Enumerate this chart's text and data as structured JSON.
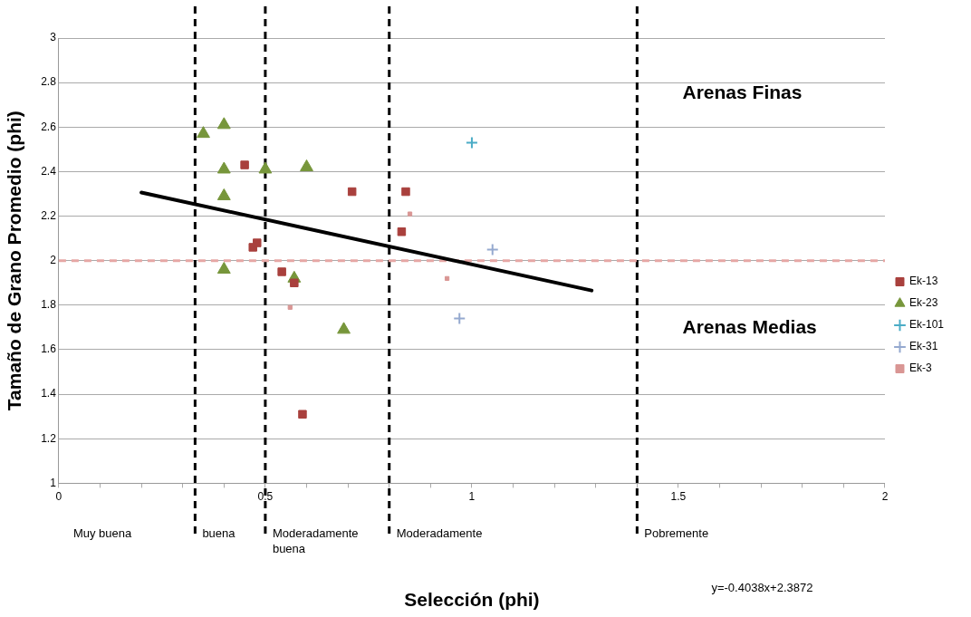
{
  "chart_data": {
    "type": "scatter",
    "xlabel": "Selección (phi)",
    "ylabel": "Tamaño de Grano Promedio (phi)",
    "xlim": [
      0,
      2
    ],
    "xticks": [
      0,
      {
        "value": 0.1,
        "label": null
      },
      {
        "value": 0.2,
        "label": null
      },
      {
        "value": 0.3,
        "label": null
      },
      {
        "value": 0.4,
        "label": null
      },
      0.5,
      {
        "value": 0.6,
        "label": null
      },
      {
        "value": 0.7,
        "label": null
      },
      {
        "value": 0.8,
        "label": null
      },
      {
        "value": 0.9,
        "label": null
      },
      1,
      {
        "value": 1.1,
        "label": null
      },
      {
        "value": 1.2,
        "label": null
      },
      {
        "value": 1.3,
        "label": null
      },
      {
        "value": 1.4,
        "label": null
      },
      1.5,
      {
        "value": 1.6,
        "label": null
      },
      {
        "value": 1.7,
        "label": null
      },
      {
        "value": 1.8,
        "label": null
      },
      {
        "value": 1.9,
        "label": null
      },
      2
    ],
    "ylim": [
      1,
      3
    ],
    "yticks": [
      1,
      1.2,
      1.4,
      1.6,
      1.8,
      2,
      2.2,
      2.4,
      2.6,
      2.8,
      3
    ],
    "grid": "y",
    "legend": "right",
    "series": [
      {
        "name": "Ek-13",
        "color": "#a9403d",
        "marker": "square",
        "x": [
          0.45,
          0.47,
          0.48,
          0.54,
          0.57,
          0.59,
          0.71,
          0.84,
          0.83
        ],
        "values": [
          2.43,
          2.06,
          2.08,
          1.95,
          1.9,
          1.31,
          2.31,
          2.31,
          2.13
        ]
      },
      {
        "name": "Ek-23",
        "color": "#77963b",
        "marker": "triangle",
        "x": [
          0.35,
          0.4,
          0.4,
          0.4,
          0.4,
          0.5,
          0.6,
          0.57,
          0.69
        ],
        "values": [
          2.57,
          2.61,
          2.41,
          2.29,
          1.96,
          2.41,
          2.42,
          1.92,
          1.69
        ]
      },
      {
        "name": "Ek-101",
        "color": "#4bacc6",
        "marker": "cross",
        "x": [
          1.0
        ],
        "values": [
          2.53
        ]
      },
      {
        "name": "Ek-31",
        "color": "#95a9cf",
        "marker": "cross",
        "x": [
          1.05,
          0.97
        ],
        "values": [
          2.05,
          1.74
        ]
      },
      {
        "name": "Ek-3",
        "color": "#d99694",
        "marker": "square",
        "x": [
          0.85,
          0.56,
          0.94
        ],
        "values": [
          2.21,
          1.79,
          1.92
        ]
      },
      {
        "type": "line",
        "color": "#000000",
        "marker": "none",
        "line_style": "solid",
        "x": [
          0.2,
          1.29
        ],
        "values": [
          2.306,
          1.866
        ]
      }
    ],
    "ref_lines": [
      {
        "axis": "x",
        "value": 0.33,
        "color": "#000000",
        "line_style": "dashed"
      },
      {
        "axis": "x",
        "value": 0.5,
        "color": "#000000",
        "line_style": "dashed"
      },
      {
        "axis": "x",
        "value": 0.8,
        "color": "#000000",
        "line_style": "dashed"
      },
      {
        "axis": "x",
        "value": 1.4,
        "color": "#000000",
        "line_style": "dashed"
      },
      {
        "axis": "y",
        "value": 2,
        "color": "#e6a7a5",
        "line_style": "dashed"
      }
    ],
    "annotations": [
      "Arenas Finas",
      "Arenas Medias",
      "Muy buena",
      "buena",
      "Moderadamente buena",
      "Moderadamente",
      "Pobremente",
      "y=-0.4038x+2.3872"
    ]
  }
}
